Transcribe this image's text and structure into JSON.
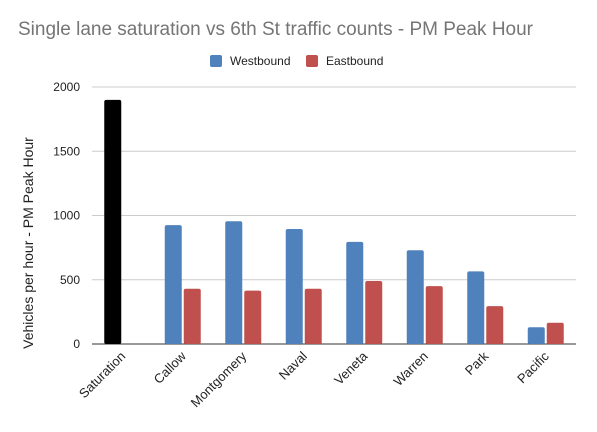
{
  "chart_data": {
    "type": "bar",
    "title": "Single lane saturation vs 6th St traffic counts - PM Peak Hour",
    "xlabel": "",
    "ylabel": "Vehicles per hour - PM Peak Hour",
    "ylim": [
      0,
      2000
    ],
    "yticks": [
      "0",
      "500",
      "1000",
      "1500",
      "2000"
    ],
    "grid": true,
    "legend_position": "top",
    "categories": [
      "Saturation",
      "Callow",
      "Montgomery",
      "Naval",
      "Veneta",
      "Warren",
      "Park",
      "Pacific"
    ],
    "saturation": {
      "category": "Saturation",
      "value": 1900,
      "color": "#000000"
    },
    "series": [
      {
        "name": "Westbound",
        "color": "#4f81bd",
        "values": [
          null,
          925,
          955,
          895,
          795,
          730,
          565,
          130
        ]
      },
      {
        "name": "Eastbound",
        "color": "#c0504d",
        "values": [
          null,
          430,
          415,
          430,
          490,
          450,
          295,
          165
        ]
      }
    ]
  }
}
